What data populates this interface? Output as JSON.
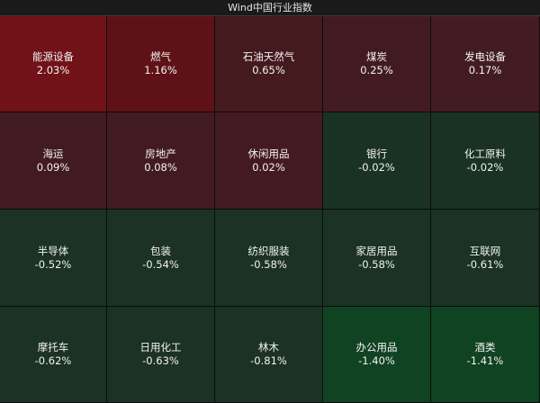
{
  "title": "Wind中国行业指数",
  "colors": {
    "strong_up": "#6e1117",
    "medium_up": "#5c1418",
    "weak_up": "#431a1f",
    "weak_down": "#1b3123",
    "strong_down": "#0f4421"
  },
  "tiles": [
    {
      "name": "能源设备",
      "value": "2.03%",
      "color": "#701218"
    },
    {
      "name": "燃气",
      "value": "1.16%",
      "color": "#5e1217"
    },
    {
      "name": "石油天然气",
      "value": "0.65%",
      "color": "#441a1f"
    },
    {
      "name": "煤炭",
      "value": "0.25%",
      "color": "#421b20"
    },
    {
      "name": "发电设备",
      "value": "0.17%",
      "color": "#431c21"
    },
    {
      "name": "海运",
      "value": "0.09%",
      "color": "#421b20"
    },
    {
      "name": "房地产",
      "value": "0.08%",
      "color": "#421b20"
    },
    {
      "name": "休闲用品",
      "value": "0.02%",
      "color": "#431a20"
    },
    {
      "name": "银行",
      "value": "-0.02%",
      "color": "#1a3222"
    },
    {
      "name": "化工原料",
      "value": "-0.02%",
      "color": "#1a3222"
    },
    {
      "name": "半导体",
      "value": "-0.52%",
      "color": "#1b3224"
    },
    {
      "name": "包装",
      "value": "-0.54%",
      "color": "#1b3224"
    },
    {
      "name": "纺织服装",
      "value": "-0.58%",
      "color": "#1b3224"
    },
    {
      "name": "家居用品",
      "value": "-0.58%",
      "color": "#1b3224"
    },
    {
      "name": "互联网",
      "value": "-0.61%",
      "color": "#1b3224"
    },
    {
      "name": "摩托车",
      "value": "-0.62%",
      "color": "#1b3224"
    },
    {
      "name": "日用化工",
      "value": "-0.63%",
      "color": "#1b3224"
    },
    {
      "name": "林木",
      "value": "-0.81%",
      "color": "#1b3224"
    },
    {
      "name": "办公用品",
      "value": "-1.40%",
      "color": "#104322"
    },
    {
      "name": "酒类",
      "value": "-1.41%",
      "color": "#104322"
    }
  ]
}
